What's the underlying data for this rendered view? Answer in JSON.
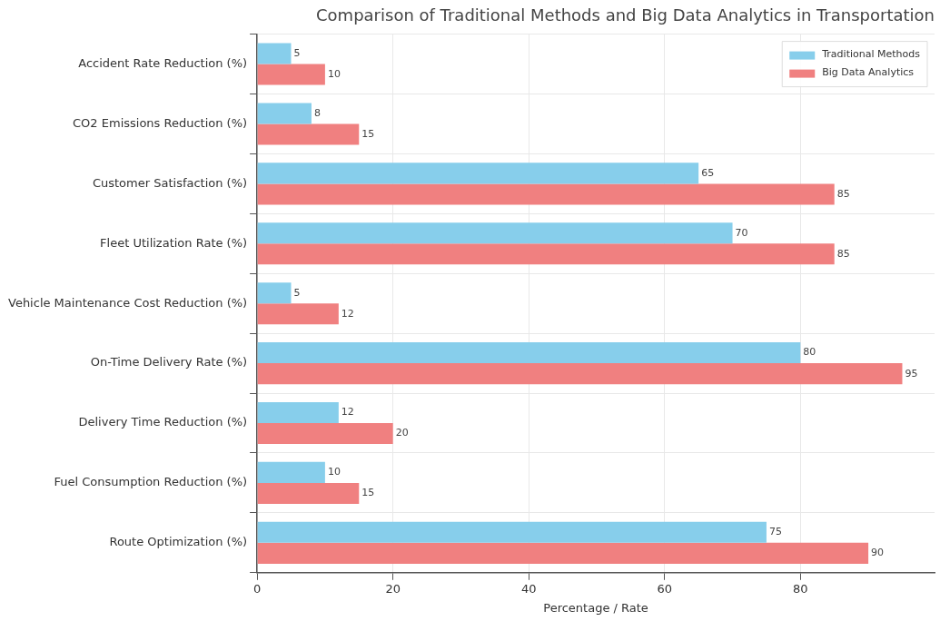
{
  "chart_data": {
    "type": "bar",
    "orientation": "horizontal",
    "title": "Comparison of Traditional Methods and Big Data Analytics in Transportation",
    "xlabel": "Percentage / Rate",
    "categories": [
      "Accident Rate Reduction (%)",
      "CO2 Emissions Reduction (%)",
      "Customer Satisfaction (%)",
      "Fleet Utilization Rate (%)",
      "Vehicle Maintenance Cost Reduction (%)",
      "On-Time Delivery Rate (%)",
      "Delivery Time Reduction (%)",
      "Fuel Consumption Reduction (%)",
      "Route Optimization (%)"
    ],
    "series": [
      {
        "name": "Traditional Methods",
        "color": "#87ceeb",
        "values": [
          5,
          8,
          65,
          70,
          5,
          80,
          12,
          10,
          75
        ]
      },
      {
        "name": "Big Data Analytics",
        "color": "#f08080",
        "values": [
          10,
          15,
          85,
          85,
          12,
          95,
          20,
          15,
          90
        ]
      }
    ],
    "xlim": [
      0,
      99.75
    ],
    "xticks": [
      0,
      20,
      40,
      60,
      80
    ],
    "grid": true,
    "legend": "top right",
    "data_labels": true
  }
}
